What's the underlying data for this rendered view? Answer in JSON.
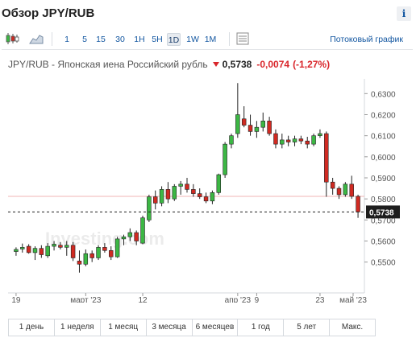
{
  "header": {
    "title": "Обзор JPY/RUB",
    "info_label": "i"
  },
  "toolbar": {
    "periods": [
      "1",
      "5",
      "15",
      "30",
      "1H",
      "5H",
      "1D",
      "1W",
      "1M"
    ],
    "active_period": "1D",
    "stream_label": "Потоковый график",
    "icons": [
      "candlestick-icon",
      "area-chart-icon",
      "panel-icon"
    ]
  },
  "quote": {
    "name": "JPY/RUB - Японская иена Российский рубль",
    "price": "0,5738",
    "change": "-0,0074",
    "change_pct": "(-1,27%)",
    "direction": "down"
  },
  "chart_data": {
    "type": "candlestick",
    "watermark": "Investing.com",
    "y_ticks": [
      "0,6300",
      "0,6200",
      "0,6100",
      "0,6000",
      "0,5900",
      "0,5800",
      "0,5700",
      "0,5600",
      "0,5500"
    ],
    "x_ticks": [
      "19",
      "март '23",
      "12",
      "апр '23",
      "9",
      "23",
      "май '23"
    ],
    "current_price_label": "0,5738",
    "current_price": 0.5738,
    "prev_close": 0.5812,
    "ylim": [
      0.543,
      0.637
    ],
    "grid": false,
    "colors": {
      "up": "#3cb744",
      "down": "#d02a22",
      "prev_close_line": "#f2b6b6"
    },
    "candles": [
      [
        0.555,
        0.557,
        0.553,
        0.556
      ],
      [
        0.5562,
        0.5588,
        0.5545,
        0.557
      ],
      [
        0.5575,
        0.5585,
        0.554,
        0.5545
      ],
      [
        0.5545,
        0.5575,
        0.551,
        0.5565
      ],
      [
        0.5565,
        0.558,
        0.552,
        0.5535
      ],
      [
        0.553,
        0.559,
        0.552,
        0.5575
      ],
      [
        0.5575,
        0.56,
        0.5555,
        0.5585
      ],
      [
        0.558,
        0.5595,
        0.556,
        0.557
      ],
      [
        0.557,
        0.56,
        0.553,
        0.558
      ],
      [
        0.558,
        0.5595,
        0.5505,
        0.552
      ],
      [
        0.5505,
        0.5555,
        0.545,
        0.549
      ],
      [
        0.549,
        0.556,
        0.548,
        0.554
      ],
      [
        0.554,
        0.5555,
        0.55,
        0.552
      ],
      [
        0.552,
        0.558,
        0.551,
        0.557
      ],
      [
        0.557,
        0.559,
        0.5545,
        0.5555
      ],
      [
        0.5555,
        0.5575,
        0.551,
        0.5525
      ],
      [
        0.5525,
        0.562,
        0.552,
        0.561
      ],
      [
        0.561,
        0.563,
        0.558,
        0.562
      ],
      [
        0.562,
        0.566,
        0.56,
        0.564
      ],
      [
        0.564,
        0.565,
        0.558,
        0.56
      ],
      [
        0.559,
        0.572,
        0.5585,
        0.571
      ],
      [
        0.57,
        0.582,
        0.569,
        0.581
      ],
      [
        0.581,
        0.584,
        0.575,
        0.578
      ],
      [
        0.578,
        0.586,
        0.5765,
        0.5845
      ],
      [
        0.5845,
        0.588,
        0.578,
        0.58
      ],
      [
        0.58,
        0.587,
        0.579,
        0.586
      ],
      [
        0.586,
        0.5885,
        0.582,
        0.587
      ],
      [
        0.587,
        0.59,
        0.583,
        0.5845
      ],
      [
        0.5845,
        0.587,
        0.581,
        0.5825
      ],
      [
        0.5825,
        0.585,
        0.58,
        0.581
      ],
      [
        0.581,
        0.583,
        0.578,
        0.579
      ],
      [
        0.579,
        0.584,
        0.5775,
        0.583
      ],
      [
        0.583,
        0.592,
        0.582,
        0.5915
      ],
      [
        0.5915,
        0.607,
        0.59,
        0.606
      ],
      [
        0.606,
        0.611,
        0.604,
        0.61
      ],
      [
        0.611,
        0.635,
        0.609,
        0.62
      ],
      [
        0.618,
        0.624,
        0.614,
        0.615
      ],
      [
        0.615,
        0.62,
        0.61,
        0.612
      ],
      [
        0.612,
        0.617,
        0.609,
        0.614
      ],
      [
        0.614,
        0.621,
        0.612,
        0.617
      ],
      [
        0.617,
        0.619,
        0.61,
        0.611
      ],
      [
        0.611,
        0.613,
        0.604,
        0.606
      ],
      [
        0.606,
        0.611,
        0.604,
        0.608
      ],
      [
        0.608,
        0.61,
        0.605,
        0.607
      ],
      [
        0.607,
        0.61,
        0.605,
        0.6085
      ],
      [
        0.6085,
        0.61,
        0.606,
        0.6075
      ],
      [
        0.6075,
        0.6095,
        0.604,
        0.606
      ],
      [
        0.606,
        0.611,
        0.605,
        0.61
      ],
      [
        0.61,
        0.613,
        0.609,
        0.611
      ],
      [
        0.611,
        0.612,
        0.581,
        0.588
      ],
      [
        0.588,
        0.59,
        0.582,
        0.585
      ],
      [
        0.585,
        0.586,
        0.58,
        0.582
      ],
      [
        0.582,
        0.588,
        0.581,
        0.587
      ],
      [
        0.587,
        0.591,
        0.58,
        0.5812
      ],
      [
        0.5812,
        0.582,
        0.571,
        0.5738
      ]
    ]
  },
  "ranges": [
    "1 день",
    "1 неделя",
    "1 месяц",
    "3 месяца",
    "6 месяцев",
    "1 год",
    "5 лет",
    "Макс."
  ]
}
